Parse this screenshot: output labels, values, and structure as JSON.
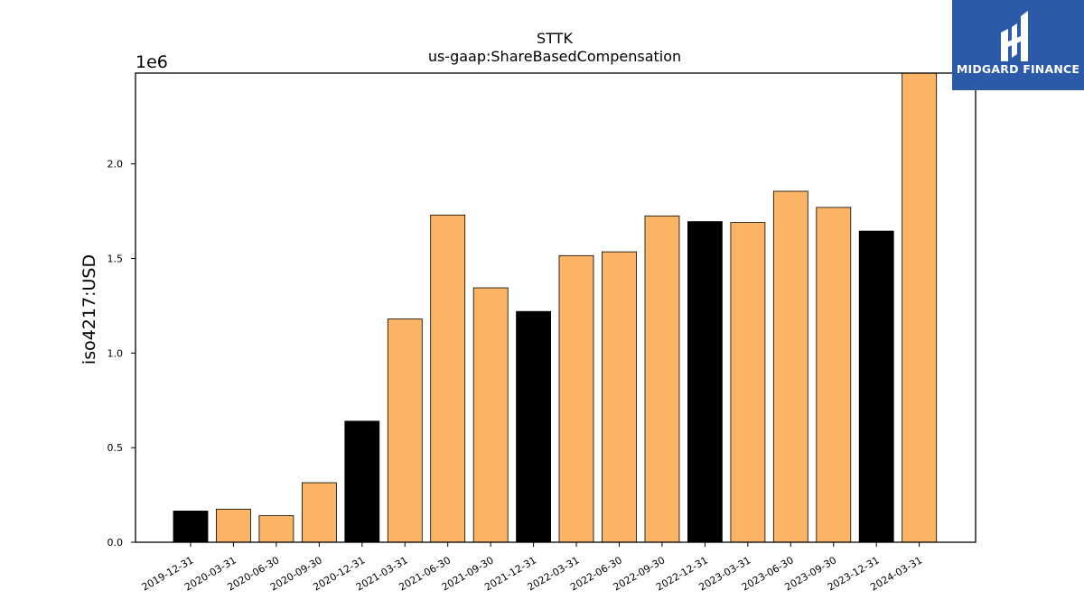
{
  "chart_data": {
    "type": "bar",
    "title": "STTK",
    "subtitle": "us-gaap:ShareBasedCompensation",
    "ylabel": "iso4217:USD",
    "y_offset_label": "1e6",
    "ylim": [
      0,
      2480000
    ],
    "yticks": [
      0,
      500000,
      1000000,
      1500000,
      2000000
    ],
    "ytick_labels": [
      "0.0",
      "0.5",
      "1.0",
      "1.5",
      "2.0"
    ],
    "categories": [
      "2019-12-31",
      "2020-03-31",
      "2020-06-30",
      "2020-09-30",
      "2020-12-31",
      "2021-03-31",
      "2021-06-30",
      "2021-09-30",
      "2021-12-31",
      "2022-03-31",
      "2022-06-30",
      "2022-09-30",
      "2022-12-31",
      "2023-03-31",
      "2023-06-30",
      "2023-09-30",
      "2023-12-31",
      "2024-03-31"
    ],
    "values": [
      165000,
      175000,
      140000,
      315000,
      640000,
      1180000,
      1730000,
      1345000,
      1220000,
      1515000,
      1535000,
      1725000,
      1695000,
      1690000,
      1855000,
      1770000,
      1645000,
      2480000
    ],
    "bar_colors": [
      "#000000",
      "#fbb464",
      "#fbb464",
      "#fbb464",
      "#000000",
      "#fbb464",
      "#fbb464",
      "#fbb464",
      "#000000",
      "#fbb464",
      "#fbb464",
      "#fbb464",
      "#000000",
      "#fbb464",
      "#fbb464",
      "#fbb464",
      "#000000",
      "#fbb464"
    ],
    "grid": false,
    "legend": "none"
  },
  "logo": {
    "text": "MIDGARD FINANCE",
    "background": "#2b5aa8",
    "icon": "midgard-logo-icon"
  }
}
